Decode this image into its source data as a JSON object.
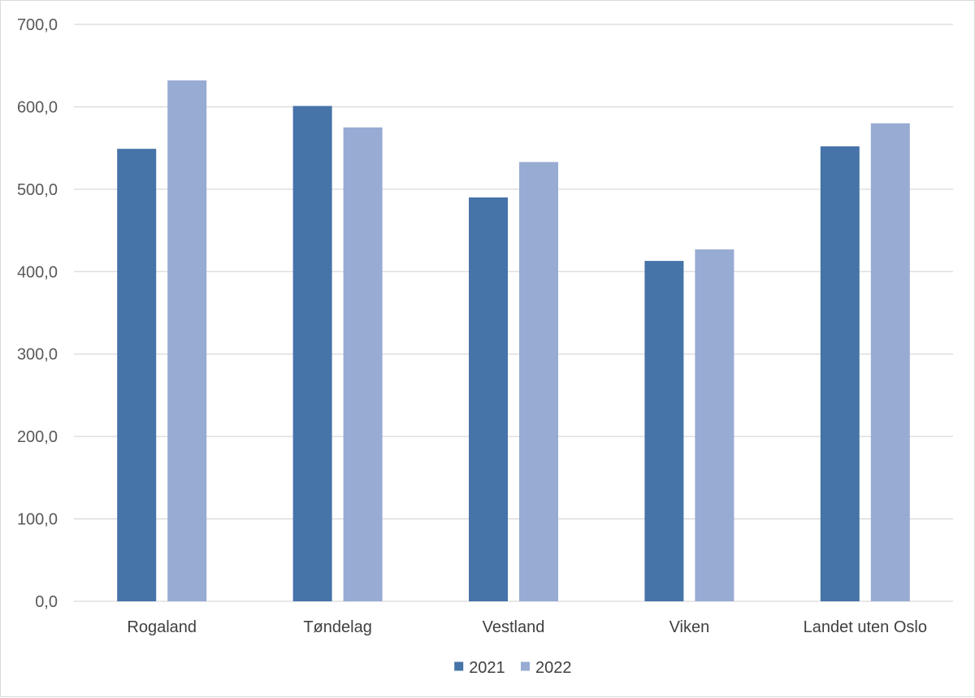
{
  "chart_data": {
    "type": "bar",
    "title": "",
    "xlabel": "",
    "ylabel": "",
    "categories": [
      "Rogaland",
      "Tøndelag",
      "Vestland",
      "Viken",
      "Landet uten Oslo"
    ],
    "series": [
      {
        "name": "2021",
        "color": "#4673a8",
        "values": [
          549.0,
          601.0,
          490.0,
          413.0,
          552.0
        ]
      },
      {
        "name": "2022",
        "color": "#97abd3",
        "values": [
          632.0,
          575.0,
          533.0,
          427.0,
          580.0
        ]
      }
    ],
    "ylim": [
      0,
      700
    ],
    "yticks": [
      0,
      100,
      200,
      300,
      400,
      500,
      600,
      700
    ],
    "ytick_labels": [
      "0,0",
      "100,0",
      "200,0",
      "300,0",
      "400,0",
      "500,0",
      "600,0",
      "700,0"
    ],
    "grid": true,
    "legend_position": "bottom",
    "gridline_color": "#d9d9d9"
  }
}
